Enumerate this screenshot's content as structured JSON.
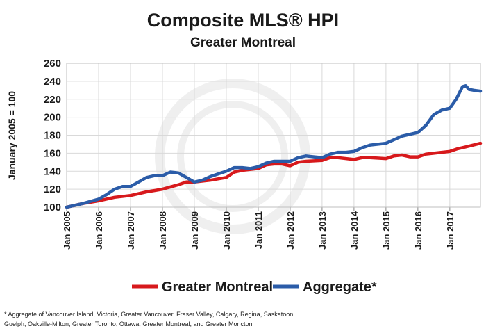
{
  "chart_data": {
    "type": "line",
    "title": "Composite MLS® HPI",
    "subtitle": "Greater Montreal",
    "ylabel": "January 2005 = 100",
    "xlabel": "",
    "ylim": [
      100,
      260
    ],
    "yticks": [
      100,
      120,
      140,
      160,
      180,
      200,
      220,
      240,
      260
    ],
    "xlim": [
      2005,
      2017.96
    ],
    "xticks": [
      {
        "t": 2005,
        "label": "Jan 2005"
      },
      {
        "t": 2006,
        "label": "Jan 2006"
      },
      {
        "t": 2007,
        "label": "Jan 2007"
      },
      {
        "t": 2008,
        "label": "Jan 2008"
      },
      {
        "t": 2009,
        "label": "Jan 2009"
      },
      {
        "t": 2010,
        "label": "Jan 2010"
      },
      {
        "t": 2011,
        "label": "Jan 2011"
      },
      {
        "t": 2012,
        "label": "Jan 2012"
      },
      {
        "t": 2013,
        "label": "Jan 2013"
      },
      {
        "t": 2014,
        "label": "Jan 2014"
      },
      {
        "t": 2015,
        "label": "Jan 2015"
      },
      {
        "t": 2016,
        "label": "Jan 2016"
      },
      {
        "t": 2017,
        "label": "Jan 2017"
      }
    ],
    "grid": true,
    "legend_position": "bottom",
    "series": [
      {
        "name": "Greater Montreal",
        "color": "#d7191c",
        "points": [
          [
            2005,
            100
          ],
          [
            2005.5,
            104
          ],
          [
            2006,
            107
          ],
          [
            2006.5,
            111
          ],
          [
            2007,
            113
          ],
          [
            2007.5,
            117
          ],
          [
            2008,
            120
          ],
          [
            2008.5,
            125
          ],
          [
            2008.75,
            128
          ],
          [
            2009,
            128
          ],
          [
            2009.5,
            130
          ],
          [
            2010,
            133
          ],
          [
            2010.25,
            139
          ],
          [
            2010.5,
            141
          ],
          [
            2011,
            143
          ],
          [
            2011.25,
            147
          ],
          [
            2011.5,
            148
          ],
          [
            2011.75,
            148
          ],
          [
            2012,
            146
          ],
          [
            2012.25,
            150
          ],
          [
            2012.5,
            151
          ],
          [
            2013,
            152
          ],
          [
            2013.25,
            155
          ],
          [
            2013.5,
            155
          ],
          [
            2014,
            153
          ],
          [
            2014.25,
            155
          ],
          [
            2014.5,
            155
          ],
          [
            2015,
            154
          ],
          [
            2015.25,
            157
          ],
          [
            2015.5,
            158
          ],
          [
            2015.75,
            156
          ],
          [
            2016,
            156
          ],
          [
            2016.25,
            159
          ],
          [
            2016.5,
            160
          ],
          [
            2016.75,
            161
          ],
          [
            2017,
            162
          ],
          [
            2017.25,
            165
          ],
          [
            2017.5,
            167
          ],
          [
            2017.96,
            171
          ]
        ]
      },
      {
        "name": "Aggregate*",
        "color": "#2b5ca8",
        "points": [
          [
            2005,
            100
          ],
          [
            2005.5,
            104
          ],
          [
            2006,
            109
          ],
          [
            2006.25,
            114
          ],
          [
            2006.5,
            120
          ],
          [
            2006.75,
            123
          ],
          [
            2007,
            123
          ],
          [
            2007.25,
            128
          ],
          [
            2007.5,
            133
          ],
          [
            2007.75,
            135
          ],
          [
            2008,
            135
          ],
          [
            2008.25,
            139
          ],
          [
            2008.5,
            138
          ],
          [
            2008.75,
            133
          ],
          [
            2009,
            128
          ],
          [
            2009.25,
            130
          ],
          [
            2009.5,
            134
          ],
          [
            2009.75,
            137
          ],
          [
            2010,
            140
          ],
          [
            2010.25,
            144
          ],
          [
            2010.5,
            144
          ],
          [
            2010.75,
            143
          ],
          [
            2011,
            145
          ],
          [
            2011.25,
            149
          ],
          [
            2011.5,
            151
          ],
          [
            2011.75,
            151
          ],
          [
            2012,
            151
          ],
          [
            2012.25,
            155
          ],
          [
            2012.5,
            157
          ],
          [
            2012.75,
            156
          ],
          [
            2013,
            155
          ],
          [
            2013.25,
            159
          ],
          [
            2013.5,
            161
          ],
          [
            2013.75,
            161
          ],
          [
            2014,
            162
          ],
          [
            2014.25,
            166
          ],
          [
            2014.5,
            169
          ],
          [
            2014.75,
            170
          ],
          [
            2015,
            171
          ],
          [
            2015.25,
            175
          ],
          [
            2015.5,
            179
          ],
          [
            2015.75,
            181
          ],
          [
            2016,
            183
          ],
          [
            2016.25,
            191
          ],
          [
            2016.5,
            203
          ],
          [
            2016.75,
            208
          ],
          [
            2017,
            210
          ],
          [
            2017.2,
            220
          ],
          [
            2017.4,
            234
          ],
          [
            2017.5,
            235
          ],
          [
            2017.6,
            231
          ],
          [
            2017.75,
            230
          ],
          [
            2017.96,
            229
          ]
        ]
      }
    ]
  },
  "footnote": {
    "line1": "* Aggregate of Vancouver Island, Victoria, Greater Vancouver, Fraser Valley, Calgary, Regina, Saskatoon,",
    "line2": "Guelph, Oakville-Milton, Greater Toronto, Ottawa, Greater Montreal, and Greater Moncton"
  }
}
